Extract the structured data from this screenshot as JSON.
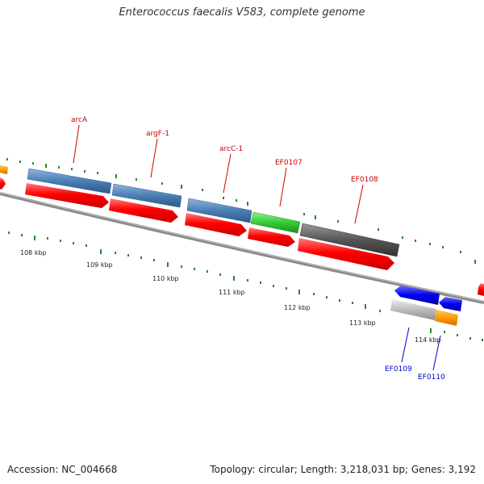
{
  "title": "Enterococcus faecalis V583, complete genome",
  "footer": {
    "accession": "Accession: NC_004668",
    "summary": "Topology: circular; Length: 3,218,031 bp; Genes: 3,192"
  },
  "ticks": [
    "108 kbp",
    "109 kbp",
    "110 kbp",
    "111 kbp",
    "112 kbp",
    "113 kbp",
    "114 kbp"
  ],
  "labels": {
    "forward": [
      "arcA",
      "argF-1",
      "arcC-1",
      "EF0107",
      "EF0108"
    ],
    "reverse": [
      "EF0109",
      "EF0110"
    ]
  },
  "colors": {
    "cds_red": "#ff0000",
    "steel_blue": "#4a7eb5",
    "green": "#33cc33",
    "dark_gray": "#555555",
    "light_gray": "#bbbbbb",
    "orange": "#ff9900",
    "blue": "#0000ee",
    "tick_green": "#2a8a2a",
    "forward_label": "#cc0000",
    "reverse_label": "#0000cc"
  }
}
